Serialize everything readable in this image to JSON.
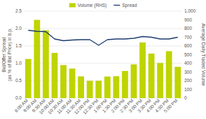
{
  "chart_data": {
    "type": "bar",
    "categories": [
      "8:00 AM",
      "9:00 AM",
      "9:30 AM",
      "10:00 AM",
      "10:30 AM",
      "11:00 AM",
      "11:30 AM",
      "12:00 PM",
      "12:30 PM",
      "1:00 PM",
      "1:30 PM",
      "2:00 PM",
      "2:30 PM",
      "3:00 PM",
      "3:30 PM",
      "4:00 PM",
      "4:30 PM",
      "5:00 PM"
    ],
    "series": [
      {
        "name": "Volume (RHS)",
        "type": "bar",
        "axis": "y2",
        "color": "#bfd400",
        "values": [
          450,
          900,
          780,
          520,
          380,
          340,
          250,
          200,
          200,
          248,
          252,
          312,
          388,
          640,
          512,
          404,
          540,
          360
        ]
      },
      {
        "name": "Spread",
        "type": "line",
        "color": "#1a3a6e",
        "values": [
          1.95,
          1.92,
          1.91,
          1.7,
          1.65,
          1.67,
          1.68,
          1.68,
          1.52,
          1.68,
          1.7,
          1.7,
          1.72,
          1.77,
          1.75,
          1.7,
          1.7,
          1.75
        ]
      }
    ],
    "ylabel": "Bid/Offer Spread\n(as % of Bid Price) in b.p.",
    "y2label": "Average Daily Traded Volume",
    "ylim": [
      0,
      2.5
    ],
    "yticks": [
      {
        "value": 0,
        "label": "0.0"
      },
      0.5,
      {
        "value": 1.0,
        "label": "1.0"
      },
      1.5,
      {
        "value": 2.0,
        "label": "2.0"
      },
      2.5
    ],
    "y2lim": [
      0,
      1000
    ],
    "y2ticks": [
      0,
      100,
      200,
      300,
      400,
      500,
      600,
      700,
      800,
      900,
      {
        "value": 1000,
        "label": "1,000"
      }
    ],
    "grid": true,
    "legend": "top"
  }
}
